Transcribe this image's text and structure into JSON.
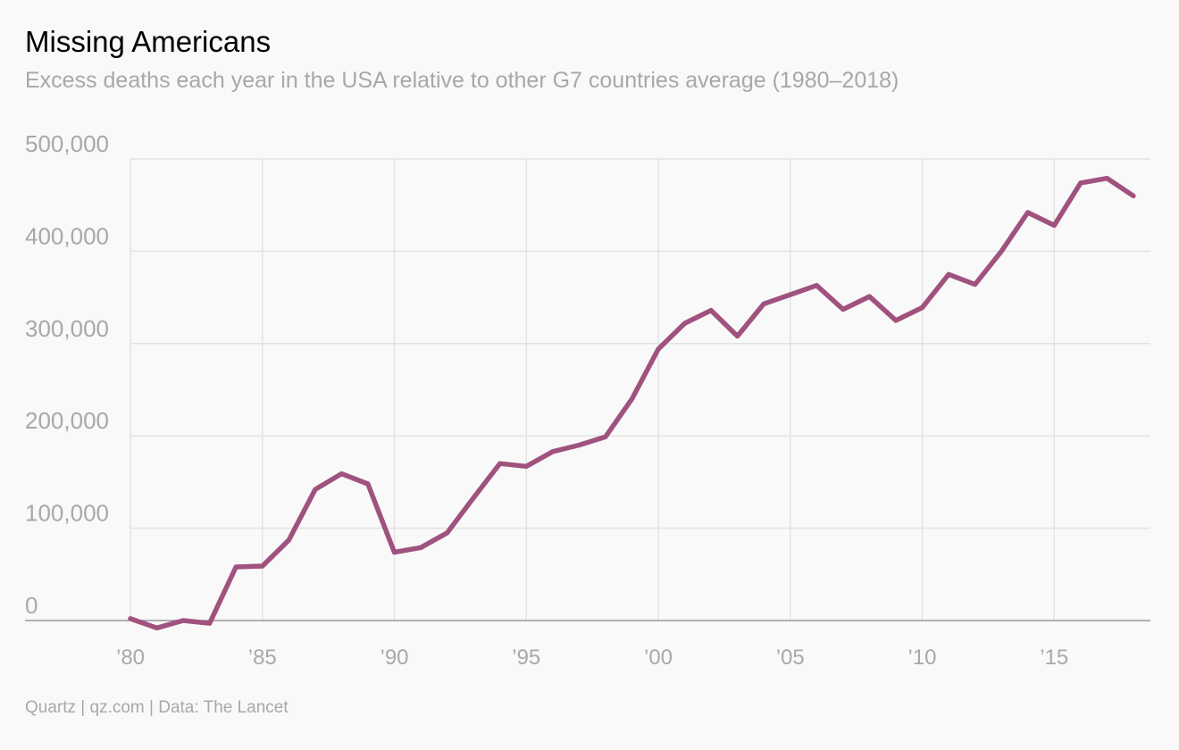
{
  "chart_data": {
    "type": "line",
    "title": "Missing Americans",
    "subtitle": "Excess deaths each year in the USA relative to other G7 countries average (1980–2018)",
    "source": "Quartz | qz.com | Data: The Lancet",
    "xlabel": "",
    "ylabel": "",
    "x": [
      1980,
      1981,
      1982,
      1983,
      1984,
      1985,
      1986,
      1987,
      1988,
      1989,
      1990,
      1991,
      1992,
      1993,
      1994,
      1995,
      1996,
      1997,
      1998,
      1999,
      2000,
      2001,
      2002,
      2003,
      2004,
      2005,
      2006,
      2007,
      2008,
      2009,
      2010,
      2011,
      2012,
      2013,
      2014,
      2015,
      2016,
      2017,
      2018
    ],
    "series": [
      {
        "color": "#a0527f",
        "values": [
          2000,
          -8000,
          0,
          -3000,
          58000,
          59000,
          87000,
          142000,
          159000,
          148000,
          74000,
          79000,
          95000,
          133000,
          170000,
          167000,
          183000,
          190000,
          199000,
          240000,
          294000,
          322000,
          336000,
          308000,
          343000,
          353000,
          363000,
          337000,
          351000,
          325000,
          339000,
          375000,
          364000,
          400000,
          442000,
          428000,
          474000,
          479000,
          460000
        ]
      }
    ],
    "xlim": [
      1980,
      2018
    ],
    "ylim": [
      0,
      500000
    ],
    "yticks": [
      {
        "value": 0,
        "label": "0"
      },
      {
        "value": 100000,
        "label": "100,000"
      },
      {
        "value": 200000,
        "label": "200,000"
      },
      {
        "value": 300000,
        "label": "300,000"
      },
      {
        "value": 400000,
        "label": "400,000"
      },
      {
        "value": 500000,
        "label": "500,000"
      }
    ],
    "xticks": [
      {
        "value": 1980,
        "label": "’80"
      },
      {
        "value": 1985,
        "label": "’85"
      },
      {
        "value": 1990,
        "label": "’90"
      },
      {
        "value": 1995,
        "label": "’95"
      },
      {
        "value": 2000,
        "label": "’00"
      },
      {
        "value": 2005,
        "label": "’05"
      },
      {
        "value": 2010,
        "label": "’10"
      },
      {
        "value": 2015,
        "label": "’15"
      }
    ],
    "grid": true,
    "legend": "none"
  }
}
